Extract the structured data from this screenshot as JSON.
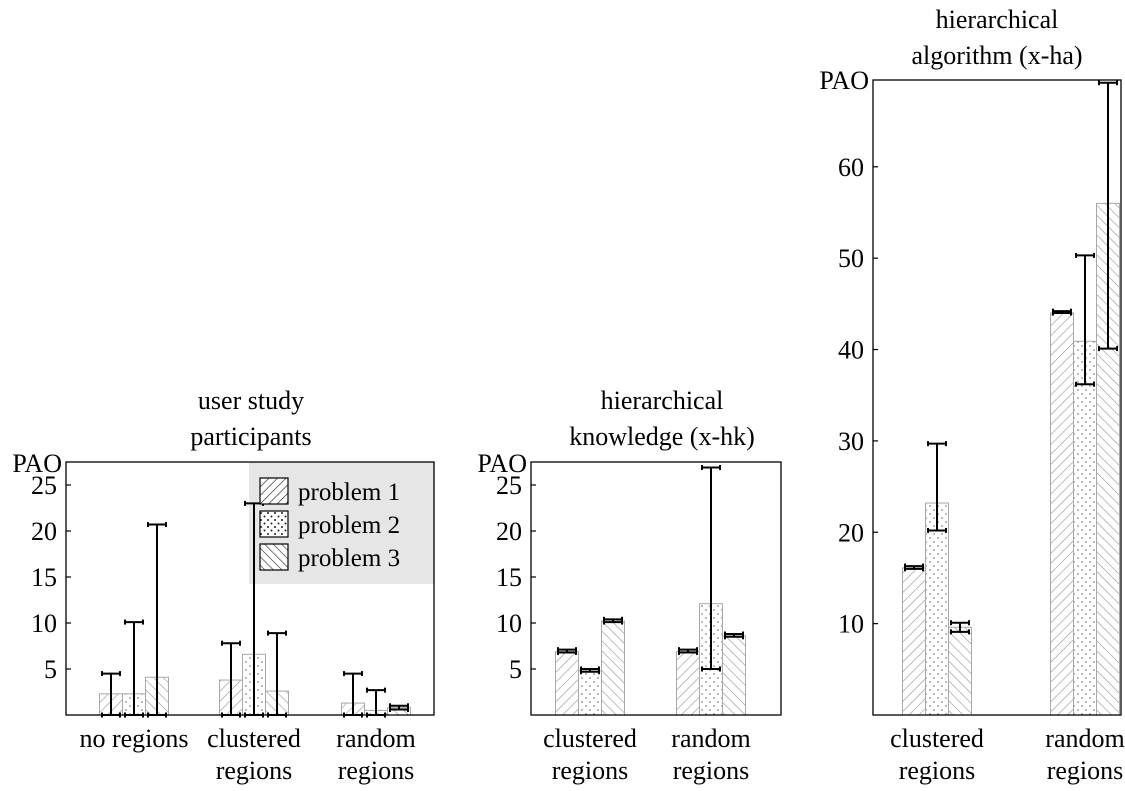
{
  "chart_data": [
    {
      "type": "bar",
      "title_lines": [
        "user study",
        "participants"
      ],
      "ylabel": "PAO",
      "ylim": [
        0,
        27.5
      ],
      "yticks": [
        5,
        10,
        15,
        20,
        25
      ],
      "categories": [
        [
          "no regions"
        ],
        [
          "clustered",
          "regions"
        ],
        [
          "random",
          "regions"
        ]
      ],
      "legend": {
        "placement": "top-right",
        "entries": [
          "problem 1",
          "problem 2",
          "problem 3"
        ],
        "background": "#e6e6e6"
      },
      "series": [
        {
          "name": "problem 1",
          "pattern": "hatch-ne",
          "values": [
            2.3,
            3.8,
            1.3
          ],
          "err_low": [
            0,
            0,
            0
          ],
          "err_high": [
            4.5,
            7.8,
            4.5
          ]
        },
        {
          "name": "problem 2",
          "pattern": "dots",
          "values": [
            2.3,
            6.6,
            0.5
          ],
          "err_low": [
            0,
            0,
            0
          ],
          "err_high": [
            10.1,
            23.0,
            2.7
          ]
        },
        {
          "name": "problem 3",
          "pattern": "hatch-nw",
          "values": [
            4.1,
            2.6,
            0.8
          ],
          "err_low": [
            0,
            0,
            0.6
          ],
          "err_high": [
            20.7,
            8.9,
            1.0
          ]
        }
      ]
    },
    {
      "type": "bar",
      "title_lines": [
        "hierarchical",
        "knowledge (x-hk)"
      ],
      "ylabel": "PAO",
      "ylim": [
        0,
        27.5
      ],
      "yticks": [
        5,
        10,
        15,
        20,
        25
      ],
      "categories": [
        [
          "clustered",
          "regions"
        ],
        [
          "random",
          "regions"
        ]
      ],
      "series": [
        {
          "name": "problem 1",
          "pattern": "hatch-ne",
          "values": [
            6.9,
            6.9
          ],
          "err_low": [
            6.8,
            6.8
          ],
          "err_high": [
            7.1,
            7.1
          ]
        },
        {
          "name": "problem 2",
          "pattern": "dots",
          "values": [
            4.8,
            12.1
          ],
          "err_low": [
            4.7,
            5.0
          ],
          "err_high": [
            5.0,
            26.9
          ]
        },
        {
          "name": "problem 3",
          "pattern": "hatch-nw",
          "values": [
            10.2,
            8.6
          ],
          "err_low": [
            10.1,
            8.5
          ],
          "err_high": [
            10.4,
            8.8
          ]
        }
      ]
    },
    {
      "type": "bar",
      "title_lines": [
        "hierarchical",
        "algorithm (x-ha)"
      ],
      "ylabel": "PAO",
      "ylim": [
        0,
        69.5
      ],
      "yticks": [
        10,
        20,
        30,
        40,
        50,
        60
      ],
      "categories": [
        [
          "clustered",
          "regions"
        ],
        [
          "random",
          "regions"
        ]
      ],
      "series": [
        {
          "name": "problem 1",
          "pattern": "hatch-ne",
          "values": [
            16.1,
            44.0
          ],
          "err_low": [
            16.0,
            44.0
          ],
          "err_high": [
            16.3,
            44.2
          ]
        },
        {
          "name": "problem 2",
          "pattern": "dots",
          "values": [
            23.2,
            40.9
          ],
          "err_low": [
            20.2,
            36.2
          ],
          "err_high": [
            29.7,
            50.3
          ]
        },
        {
          "name": "problem 3",
          "pattern": "hatch-nw",
          "values": [
            9.6,
            56.0
          ],
          "err_low": [
            9.1,
            40.1
          ],
          "err_high": [
            10.1,
            69.2
          ]
        }
      ]
    }
  ]
}
